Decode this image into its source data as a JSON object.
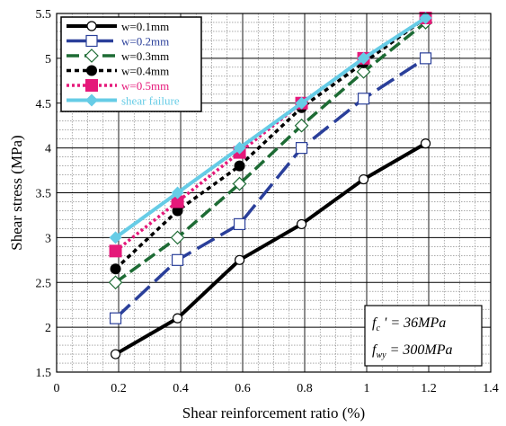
{
  "chart_data": {
    "type": "line",
    "xlabel": "Shear reinforcement ratio   (%)",
    "ylabel": "Shear    stress    (MPa)",
    "xlim": [
      0,
      1.4
    ],
    "ylim": [
      1.5,
      5.5
    ],
    "x_ticks": [
      "0",
      "0.2",
      "0.4",
      "0.6",
      "0.8",
      "1",
      "1.2",
      "1.4"
    ],
    "y_ticks": [
      "1.5",
      "2",
      "2.5",
      "3",
      "3.5",
      "4",
      "4.5",
      "5",
      "5.5"
    ],
    "grid": "major and minor",
    "legend_position": "top-left",
    "x": [
      0.19,
      0.39,
      0.59,
      0.79,
      0.99,
      1.19
    ],
    "series": [
      {
        "name": "w=0.1mm",
        "values": [
          1.7,
          2.1,
          2.75,
          3.15,
          3.65,
          4.05
        ],
        "color": "#000000",
        "marker": "open-circle",
        "dash": "solid"
      },
      {
        "name": "w=0.2mm",
        "values": [
          2.1,
          2.75,
          3.15,
          4.0,
          4.55,
          5.0
        ],
        "color": "#2a3f9a",
        "marker": "open-square",
        "dash": "long-dash"
      },
      {
        "name": "w=0.3mm",
        "values": [
          2.5,
          3.0,
          3.6,
          4.25,
          4.85,
          5.4
        ],
        "color": "#1d6b34",
        "marker": "open-diamond",
        "dash": "dash"
      },
      {
        "name": "w=0.4mm",
        "values": [
          2.65,
          3.3,
          3.8,
          4.45,
          4.95,
          5.45
        ],
        "color": "#000000",
        "marker": "filled-circle",
        "dash": "short-dash"
      },
      {
        "name": "w=0.5mm",
        "values": [
          2.85,
          3.4,
          3.95,
          4.5,
          5.0,
          5.45
        ],
        "color": "#e5197a",
        "marker": "filled-square",
        "dash": "dot"
      },
      {
        "name": "shear failure",
        "values": [
          3.0,
          3.5,
          4.0,
          4.5,
          5.0,
          5.45
        ],
        "color": "#66cce6",
        "marker": "filled-diamond",
        "dash": "solid"
      }
    ],
    "annotation": {
      "line1": {
        "f": "f",
        "sub": "c",
        "rest": " ' = 36MPa"
      },
      "line2": {
        "f": "f",
        "sub": "wy",
        "rest": " = 300MPa"
      }
    }
  }
}
